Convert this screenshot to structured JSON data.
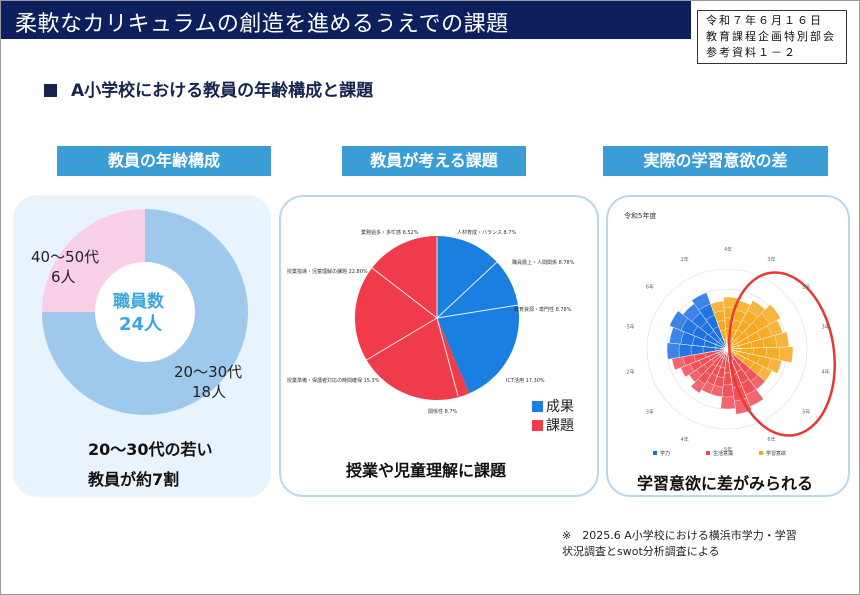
{
  "header": {
    "title": "柔軟なカリキュラムの創造を進めるうえでの課題"
  },
  "stamp": {
    "line1": "令和７年６月１６日",
    "line2": "教育課程企画特別部会",
    "line3": "参考資料１－２"
  },
  "section_heading": "A小学校における教員の年齢構成と課題",
  "panel1": {
    "title": "教員の年齢構成",
    "center_label": "職員数",
    "center_value": "24人",
    "label_a_age": "40～50代",
    "label_a_count": "6人",
    "label_b_age": "20～30代",
    "label_b_count": "18人",
    "caption_line1": "20～30代の若い",
    "caption_line2": "教員が約7割"
  },
  "panel2": {
    "title": "教員が考える課題",
    "caption": "授業や児童理解に課題",
    "legend": [
      {
        "label": "成果",
        "color": "#1a7fe0"
      },
      {
        "label": "課題",
        "color": "#ef3b4a"
      }
    ],
    "slice_labels": [
      "人材育成・バランス 8.7%",
      "職員層上・人間関係 8.78%",
      "教育資源・専門性 8.78%",
      "ICT活用 17.30%",
      "関係性 8.7%",
      "授業準備・保護者対応の時間確保 15.3%",
      "授業指導・児童理解の課題 22.80%",
      "業務過多・多忙感 8.52%"
    ]
  },
  "panel3": {
    "title": "実際の学習意欲の差",
    "chart_title": "令和5年度",
    "caption": "学習意欲に差がみられる",
    "legend": [
      {
        "label": "学力",
        "color": "#1a6fe0"
      },
      {
        "label": "生活意識",
        "color": "#ef4a52"
      },
      {
        "label": "学習意欲",
        "color": "#f5a81c"
      }
    ],
    "ring_labels": [
      "4年",
      "3年",
      "2年",
      "3年",
      "4年",
      "5年",
      "6年",
      "5年",
      "4年",
      "3年",
      "2年",
      "5年",
      "6年",
      "2年"
    ]
  },
  "chart_data": [
    {
      "type": "pie",
      "title": "",
      "categories": [
        "20～30代",
        "40～50代"
      ],
      "values": [
        18,
        6
      ],
      "colors": [
        "#9ec9ec",
        "#f9cfe8"
      ]
    },
    {
      "type": "pie",
      "title": "",
      "categories": [
        "成果",
        "課題"
      ],
      "values": [
        43.56,
        56.44
      ],
      "colors": [
        "#1a7fe0",
        "#ef3b4a"
      ]
    }
  ],
  "footnote": {
    "line1": "※　2025.6 A小学校における横浜市学力・学習",
    "line2": "状況調査とswot分析調査による"
  }
}
